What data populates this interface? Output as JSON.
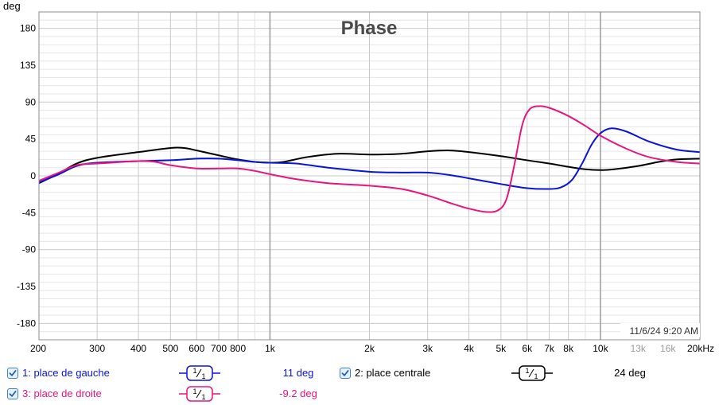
{
  "chart_data": {
    "type": "line",
    "title": "Phase",
    "ylabel": "deg",
    "xlabel": "",
    "x_scale": "log",
    "xlim": [
      200,
      20000
    ],
    "ylim": [
      -200,
      200
    ],
    "grid": true,
    "timestamp": "11/6/24 9:20 AM",
    "yticks": [
      180,
      135,
      90,
      45,
      0,
      -45,
      -90,
      -135,
      -180
    ],
    "xticks": [
      {
        "v": 200,
        "label": "200",
        "muted": false
      },
      {
        "v": 300,
        "label": "300",
        "muted": false
      },
      {
        "v": 400,
        "label": "400",
        "muted": false
      },
      {
        "v": 500,
        "label": "500",
        "muted": false
      },
      {
        "v": 600,
        "label": "600",
        "muted": false
      },
      {
        "v": 700,
        "label": "700",
        "muted": false
      },
      {
        "v": 800,
        "label": "800",
        "muted": false
      },
      {
        "v": 1000,
        "label": "1k",
        "muted": false
      },
      {
        "v": 2000,
        "label": "2k",
        "muted": false
      },
      {
        "v": 3000,
        "label": "3k",
        "muted": false
      },
      {
        "v": 4000,
        "label": "4k",
        "muted": false
      },
      {
        "v": 5000,
        "label": "5k",
        "muted": false
      },
      {
        "v": 6000,
        "label": "6k",
        "muted": false
      },
      {
        "v": 7000,
        "label": "7k",
        "muted": false
      },
      {
        "v": 8000,
        "label": "8k",
        "muted": false
      },
      {
        "v": 10000,
        "label": "10k",
        "muted": false
      },
      {
        "v": 13000,
        "label": "13k",
        "muted": true
      },
      {
        "v": 16000,
        "label": "16k",
        "muted": true
      },
      {
        "v": 20000,
        "label": "20kHz",
        "muted": false
      }
    ],
    "series": [
      {
        "name": "place de gauche",
        "color": "#0a14d6",
        "points": [
          [
            200,
            -8
          ],
          [
            230,
            2
          ],
          [
            260,
            12
          ],
          [
            300,
            16
          ],
          [
            400,
            18
          ],
          [
            500,
            19
          ],
          [
            600,
            21
          ],
          [
            700,
            21
          ],
          [
            800,
            19
          ],
          [
            900,
            17
          ],
          [
            1000,
            16
          ],
          [
            1200,
            15
          ],
          [
            1500,
            10
          ],
          [
            2000,
            5
          ],
          [
            2500,
            4
          ],
          [
            3000,
            4
          ],
          [
            3500,
            1
          ],
          [
            4000,
            -3
          ],
          [
            5000,
            -10
          ],
          [
            6000,
            -15
          ],
          [
            7000,
            -16
          ],
          [
            7600,
            -14
          ],
          [
            8200,
            -5
          ],
          [
            8800,
            15
          ],
          [
            9400,
            38
          ],
          [
            10000,
            52
          ],
          [
            10800,
            58
          ],
          [
            12000,
            54
          ],
          [
            14000,
            42
          ],
          [
            17000,
            32
          ],
          [
            20000,
            29
          ]
        ]
      },
      {
        "name": "place centrale",
        "color": "#000000",
        "points": [
          [
            200,
            -9
          ],
          [
            230,
            3
          ],
          [
            260,
            15
          ],
          [
            300,
            22
          ],
          [
            400,
            29
          ],
          [
            500,
            34
          ],
          [
            550,
            34
          ],
          [
            600,
            31
          ],
          [
            700,
            25
          ],
          [
            800,
            20
          ],
          [
            900,
            17
          ],
          [
            1000,
            16
          ],
          [
            1100,
            17
          ],
          [
            1300,
            23
          ],
          [
            1600,
            27
          ],
          [
            2000,
            26
          ],
          [
            2500,
            27
          ],
          [
            3000,
            30
          ],
          [
            3500,
            31
          ],
          [
            4000,
            29
          ],
          [
            5000,
            24
          ],
          [
            6000,
            19
          ],
          [
            7000,
            15
          ],
          [
            8000,
            11
          ],
          [
            9000,
            8
          ],
          [
            10000,
            7
          ],
          [
            11000,
            8
          ],
          [
            13000,
            12
          ],
          [
            15000,
            17
          ],
          [
            17000,
            20
          ],
          [
            20000,
            21
          ]
        ]
      },
      {
        "name": "place de droite",
        "color": "#e8157f",
        "points": [
          [
            200,
            -6
          ],
          [
            230,
            4
          ],
          [
            260,
            13
          ],
          [
            300,
            15
          ],
          [
            400,
            18
          ],
          [
            450,
            17
          ],
          [
            500,
            13
          ],
          [
            600,
            9
          ],
          [
            700,
            9
          ],
          [
            800,
            9
          ],
          [
            900,
            6
          ],
          [
            1000,
            2
          ],
          [
            1200,
            -4
          ],
          [
            1500,
            -9
          ],
          [
            2000,
            -12
          ],
          [
            2500,
            -16
          ],
          [
            3000,
            -24
          ],
          [
            3500,
            -33
          ],
          [
            4000,
            -40
          ],
          [
            4500,
            -44
          ],
          [
            4900,
            -42
          ],
          [
            5200,
            -28
          ],
          [
            5500,
            15
          ],
          [
            5800,
            62
          ],
          [
            6100,
            81
          ],
          [
            6500,
            85
          ],
          [
            7000,
            83
          ],
          [
            8000,
            73
          ],
          [
            9000,
            61
          ],
          [
            10000,
            49
          ],
          [
            12000,
            33
          ],
          [
            14000,
            23
          ],
          [
            17000,
            17
          ],
          [
            20000,
            15
          ]
        ]
      }
    ]
  },
  "legend": [
    {
      "index": "1:",
      "label": "place de gauche",
      "smoothing": "1/1",
      "value": "11 deg",
      "color": "#0a14d6"
    },
    {
      "index": "2:",
      "label": "place centrale",
      "smoothing": "1/1",
      "value": "24 deg",
      "color": "#000000"
    },
    {
      "index": "3:",
      "label": "place de droite",
      "smoothing": "1/1",
      "value": "-9.2 deg",
      "color": "#e8157f"
    }
  ]
}
